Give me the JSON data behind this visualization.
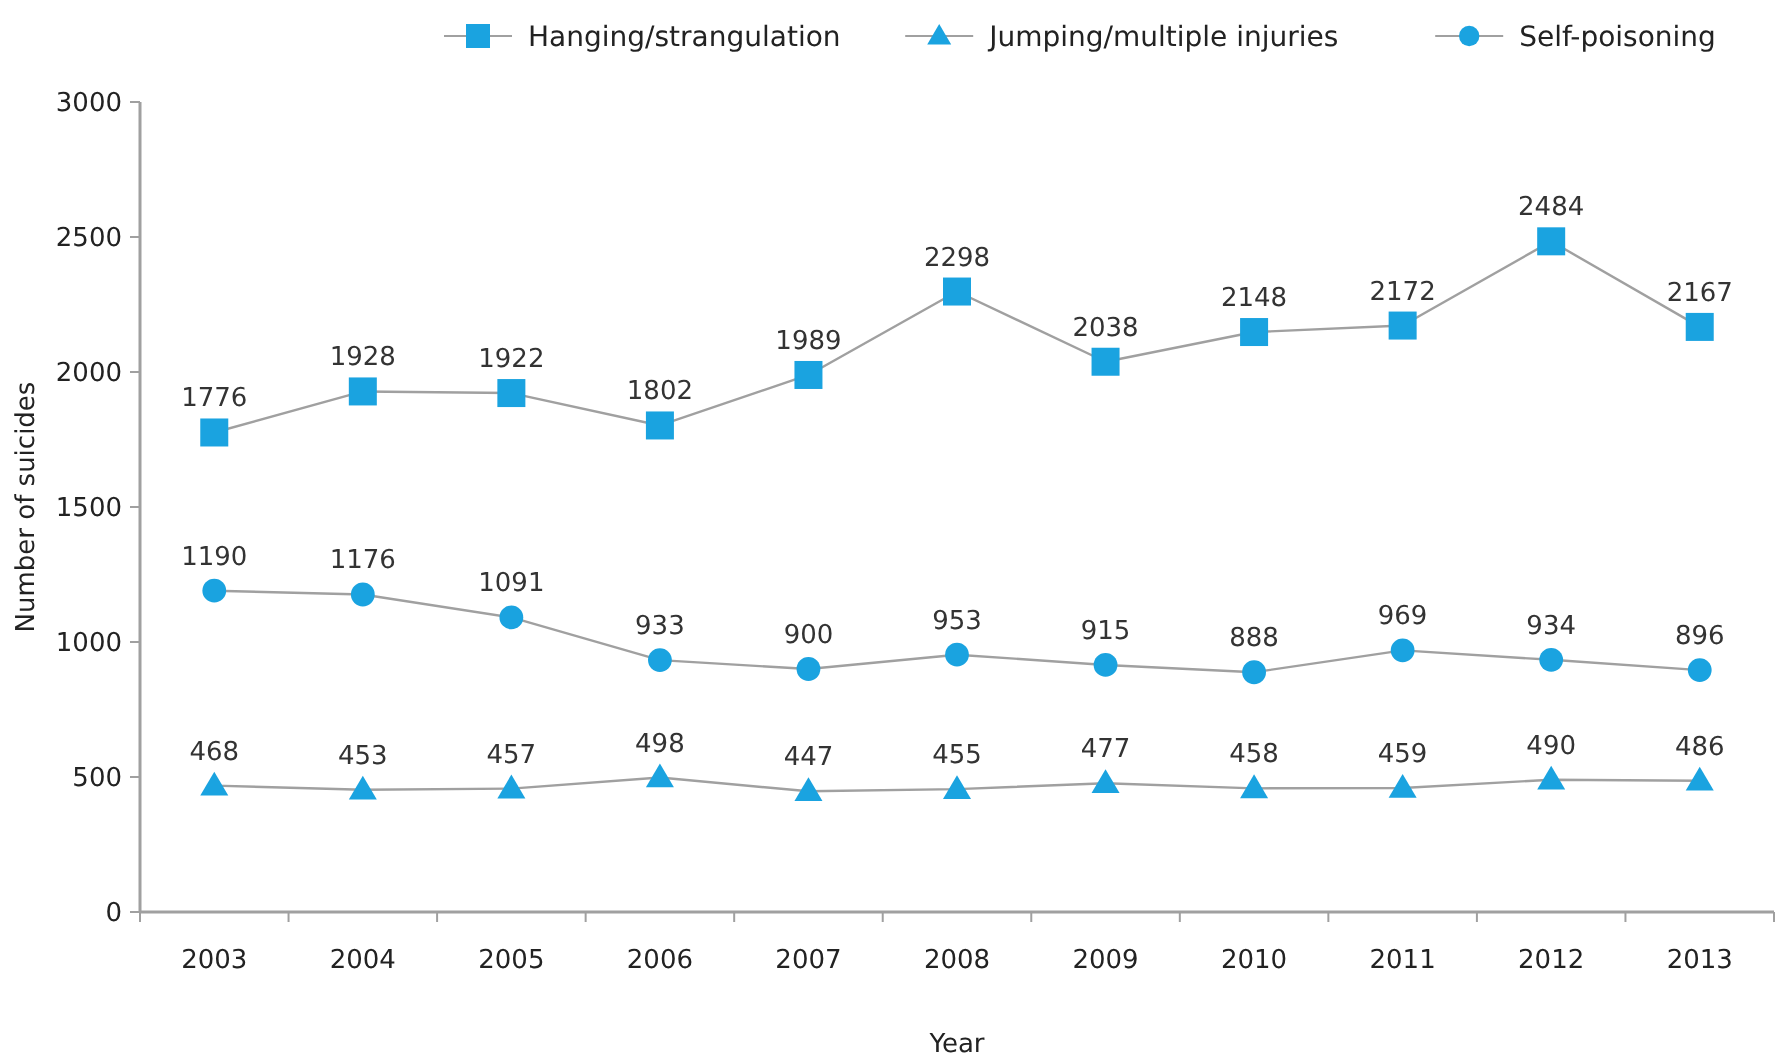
{
  "chart_data": {
    "type": "line",
    "xlabel": "Year",
    "ylabel": "Number of suicides",
    "categories": [
      "2003",
      "2004",
      "2005",
      "2006",
      "2007",
      "2008",
      "2009",
      "2010",
      "2011",
      "2012",
      "2013"
    ],
    "ylim": [
      0,
      3000
    ],
    "yticks": [
      0,
      500,
      1000,
      1500,
      2000,
      2500,
      3000
    ],
    "grid": false,
    "legend": "top right",
    "data_labels": true,
    "series": [
      {
        "name": "Hanging/strangulation",
        "color": "#1aa3e0",
        "marker": "square",
        "values": [
          1776,
          1928,
          1922,
          1802,
          1989,
          2298,
          2038,
          2148,
          2172,
          2484,
          2167
        ]
      },
      {
        "name": "Jumping/multiple injuries",
        "color": "#1aa3e0",
        "marker": "triangle",
        "values": [
          468,
          453,
          457,
          498,
          447,
          455,
          477,
          458,
          459,
          490,
          486
        ]
      },
      {
        "name": "Self-poisoning",
        "color": "#1aa3e0",
        "marker": "circle",
        "values": [
          1190,
          1176,
          1091,
          933,
          900,
          953,
          915,
          888,
          969,
          934,
          896
        ]
      }
    ]
  }
}
